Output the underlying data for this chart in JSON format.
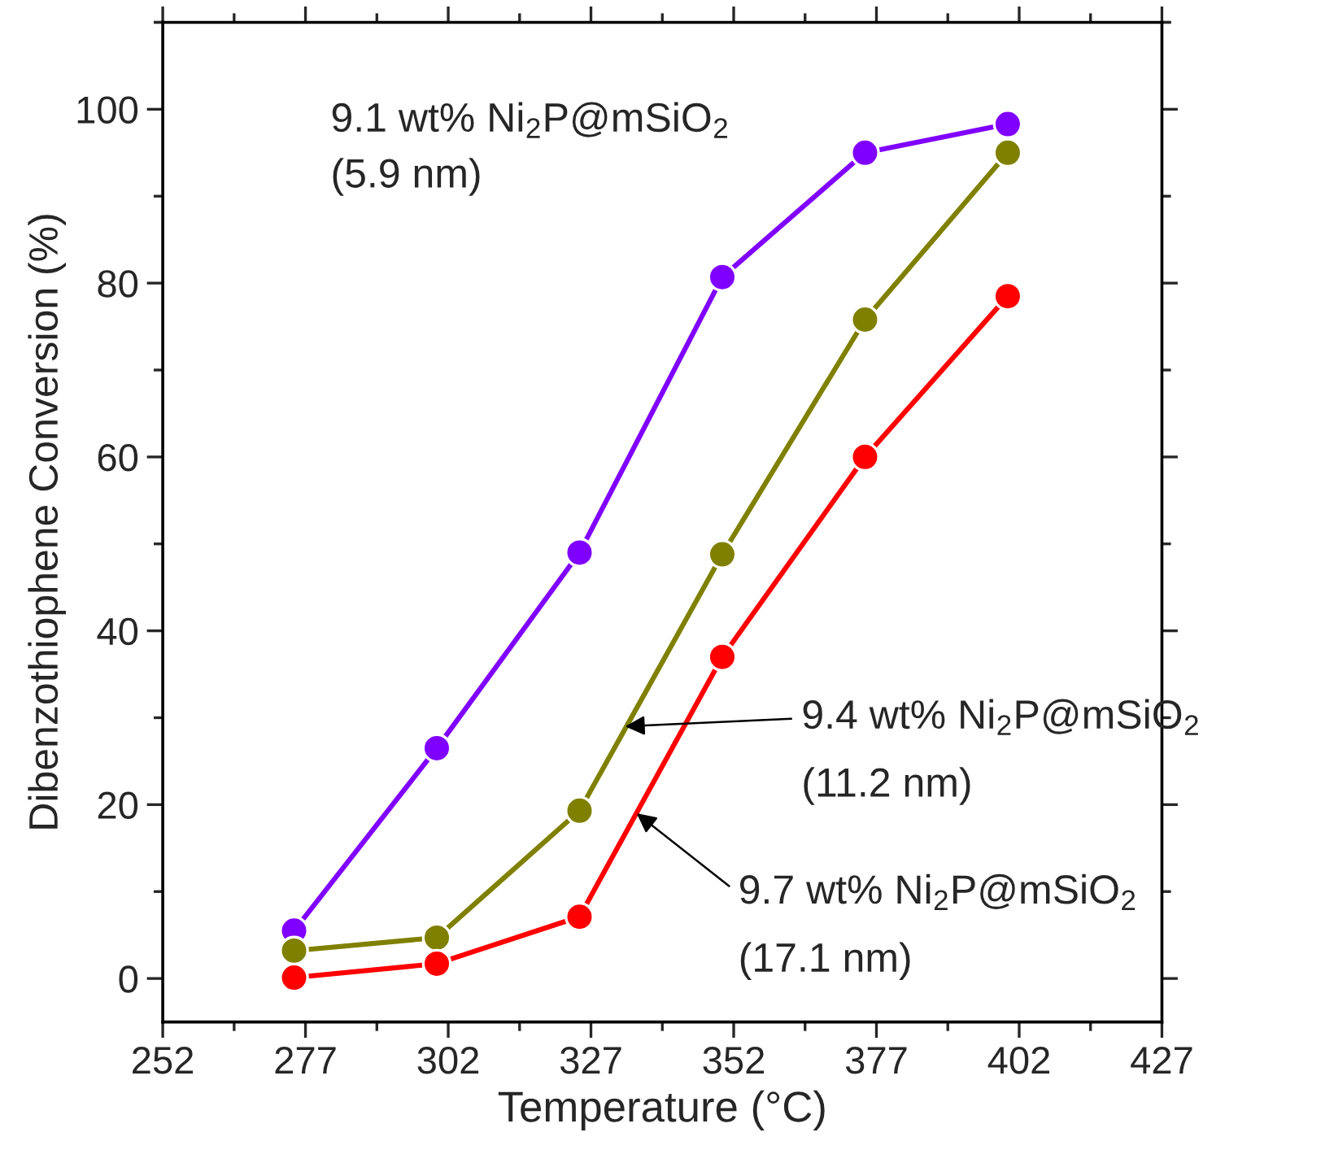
{
  "chart_data": {
    "type": "line",
    "xlabel": "Temperature (°C)",
    "ylabel": "Dibenzothiophene Conversion (%)",
    "x": [
      275,
      300,
      325,
      350,
      375,
      400
    ],
    "series": [
      {
        "color": "#8000ff",
        "values": [
          5.5,
          26.5,
          49,
          80.7,
          95,
          98.3
        ]
      },
      {
        "color": "#808000",
        "values": [
          3.2,
          4.7,
          19.3,
          48.8,
          75.8,
          95
        ]
      },
      {
        "color": "#ff0000",
        "values": [
          0.1,
          1.7,
          7.1,
          37,
          60,
          78.5
        ]
      }
    ],
    "xlim": [
      252,
      427
    ],
    "xticks": [
      252,
      277,
      302,
      327,
      352,
      377,
      402,
      427
    ],
    "ylim": [
      -5,
      110
    ],
    "yticks": [
      0,
      20,
      40,
      60,
      80,
      100
    ],
    "marker": "circle",
    "line_style": "solid",
    "grid": false,
    "legend": false,
    "annotations": [
      "9.1 wt% Ni$_{2}$P@mSiO$_{2}$\n(5.9 nm)",
      {
        "text": "9.4 wt% Ni$_{2}$P@mSiO$_{2}$",
        "x": 333,
        "y": 29
      },
      "(11.2 nm)",
      {
        "text": "9.7 wt% Ni$_{2}$P@mSiO$_{2}$",
        "x": 335,
        "y": 19
      },
      "(17.1 nm)"
    ]
  }
}
